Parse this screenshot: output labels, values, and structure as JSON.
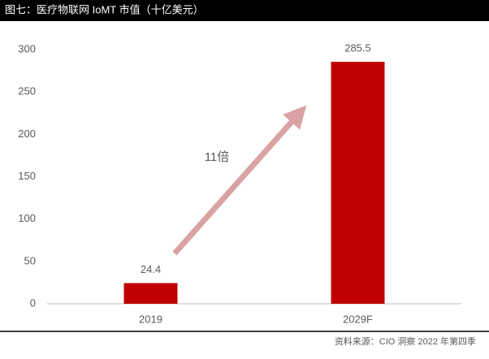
{
  "chart_data": {
    "type": "bar",
    "title": "图七：医疗物联网 IoMT 市值（十亿美元）",
    "categories": [
      "2019",
      "2029F"
    ],
    "values": [
      24.4,
      285.5
    ],
    "color": "#c00000",
    "ylim": [
      0,
      300
    ],
    "yticks": [
      0,
      50,
      100,
      150,
      200,
      250,
      300
    ],
    "grid": false,
    "annotation": "11倍",
    "source": "资料来源：CIO 洞察 2022 年第四季"
  }
}
